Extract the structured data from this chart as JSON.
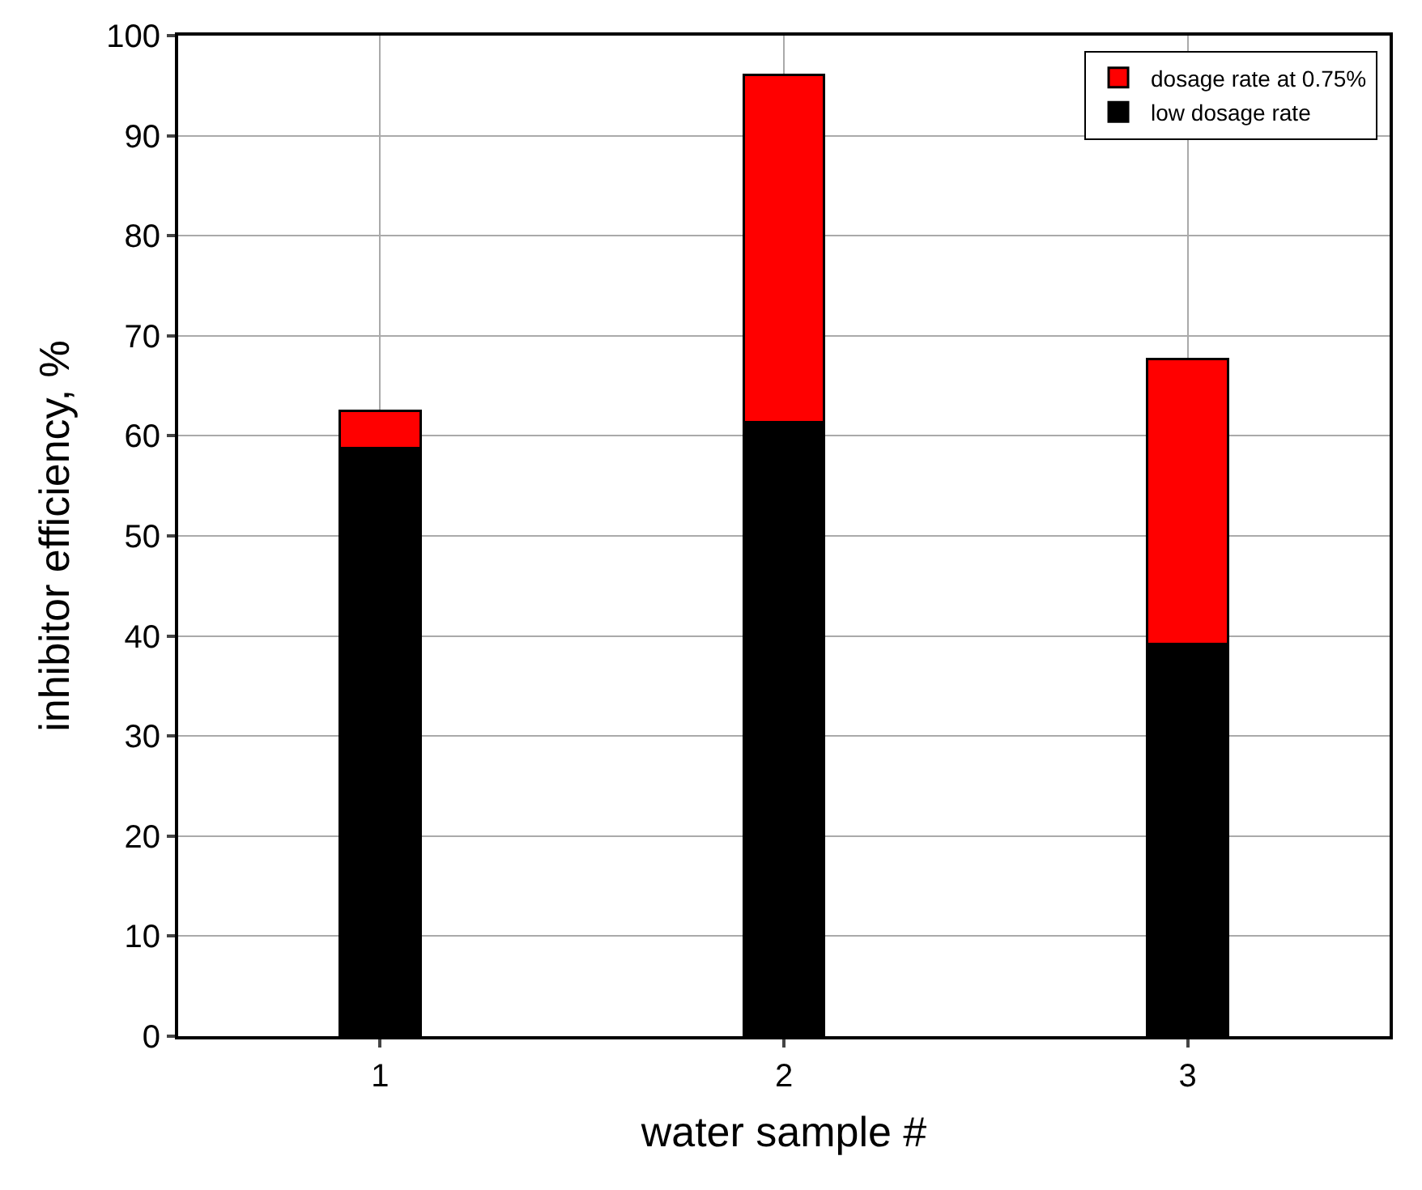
{
  "chart_data": {
    "type": "bar",
    "xlabel": "water sample #",
    "ylabel": "inhibitor efficiency, %",
    "categories": [
      "1",
      "2",
      "3"
    ],
    "stacked": true,
    "series": [
      {
        "name": "low dosage rate",
        "color": "#000000",
        "values": [
          58.8,
          61.4,
          39.2
        ]
      },
      {
        "name": "dosage rate at 0.75%",
        "color": "#ff0000",
        "values": [
          3.7,
          34.7,
          28.5
        ]
      }
    ],
    "ylim": [
      0,
      100
    ],
    "yticks": [
      0,
      10,
      20,
      30,
      40,
      50,
      60,
      70,
      80,
      90,
      100
    ],
    "grid": true,
    "legend": "top right"
  }
}
